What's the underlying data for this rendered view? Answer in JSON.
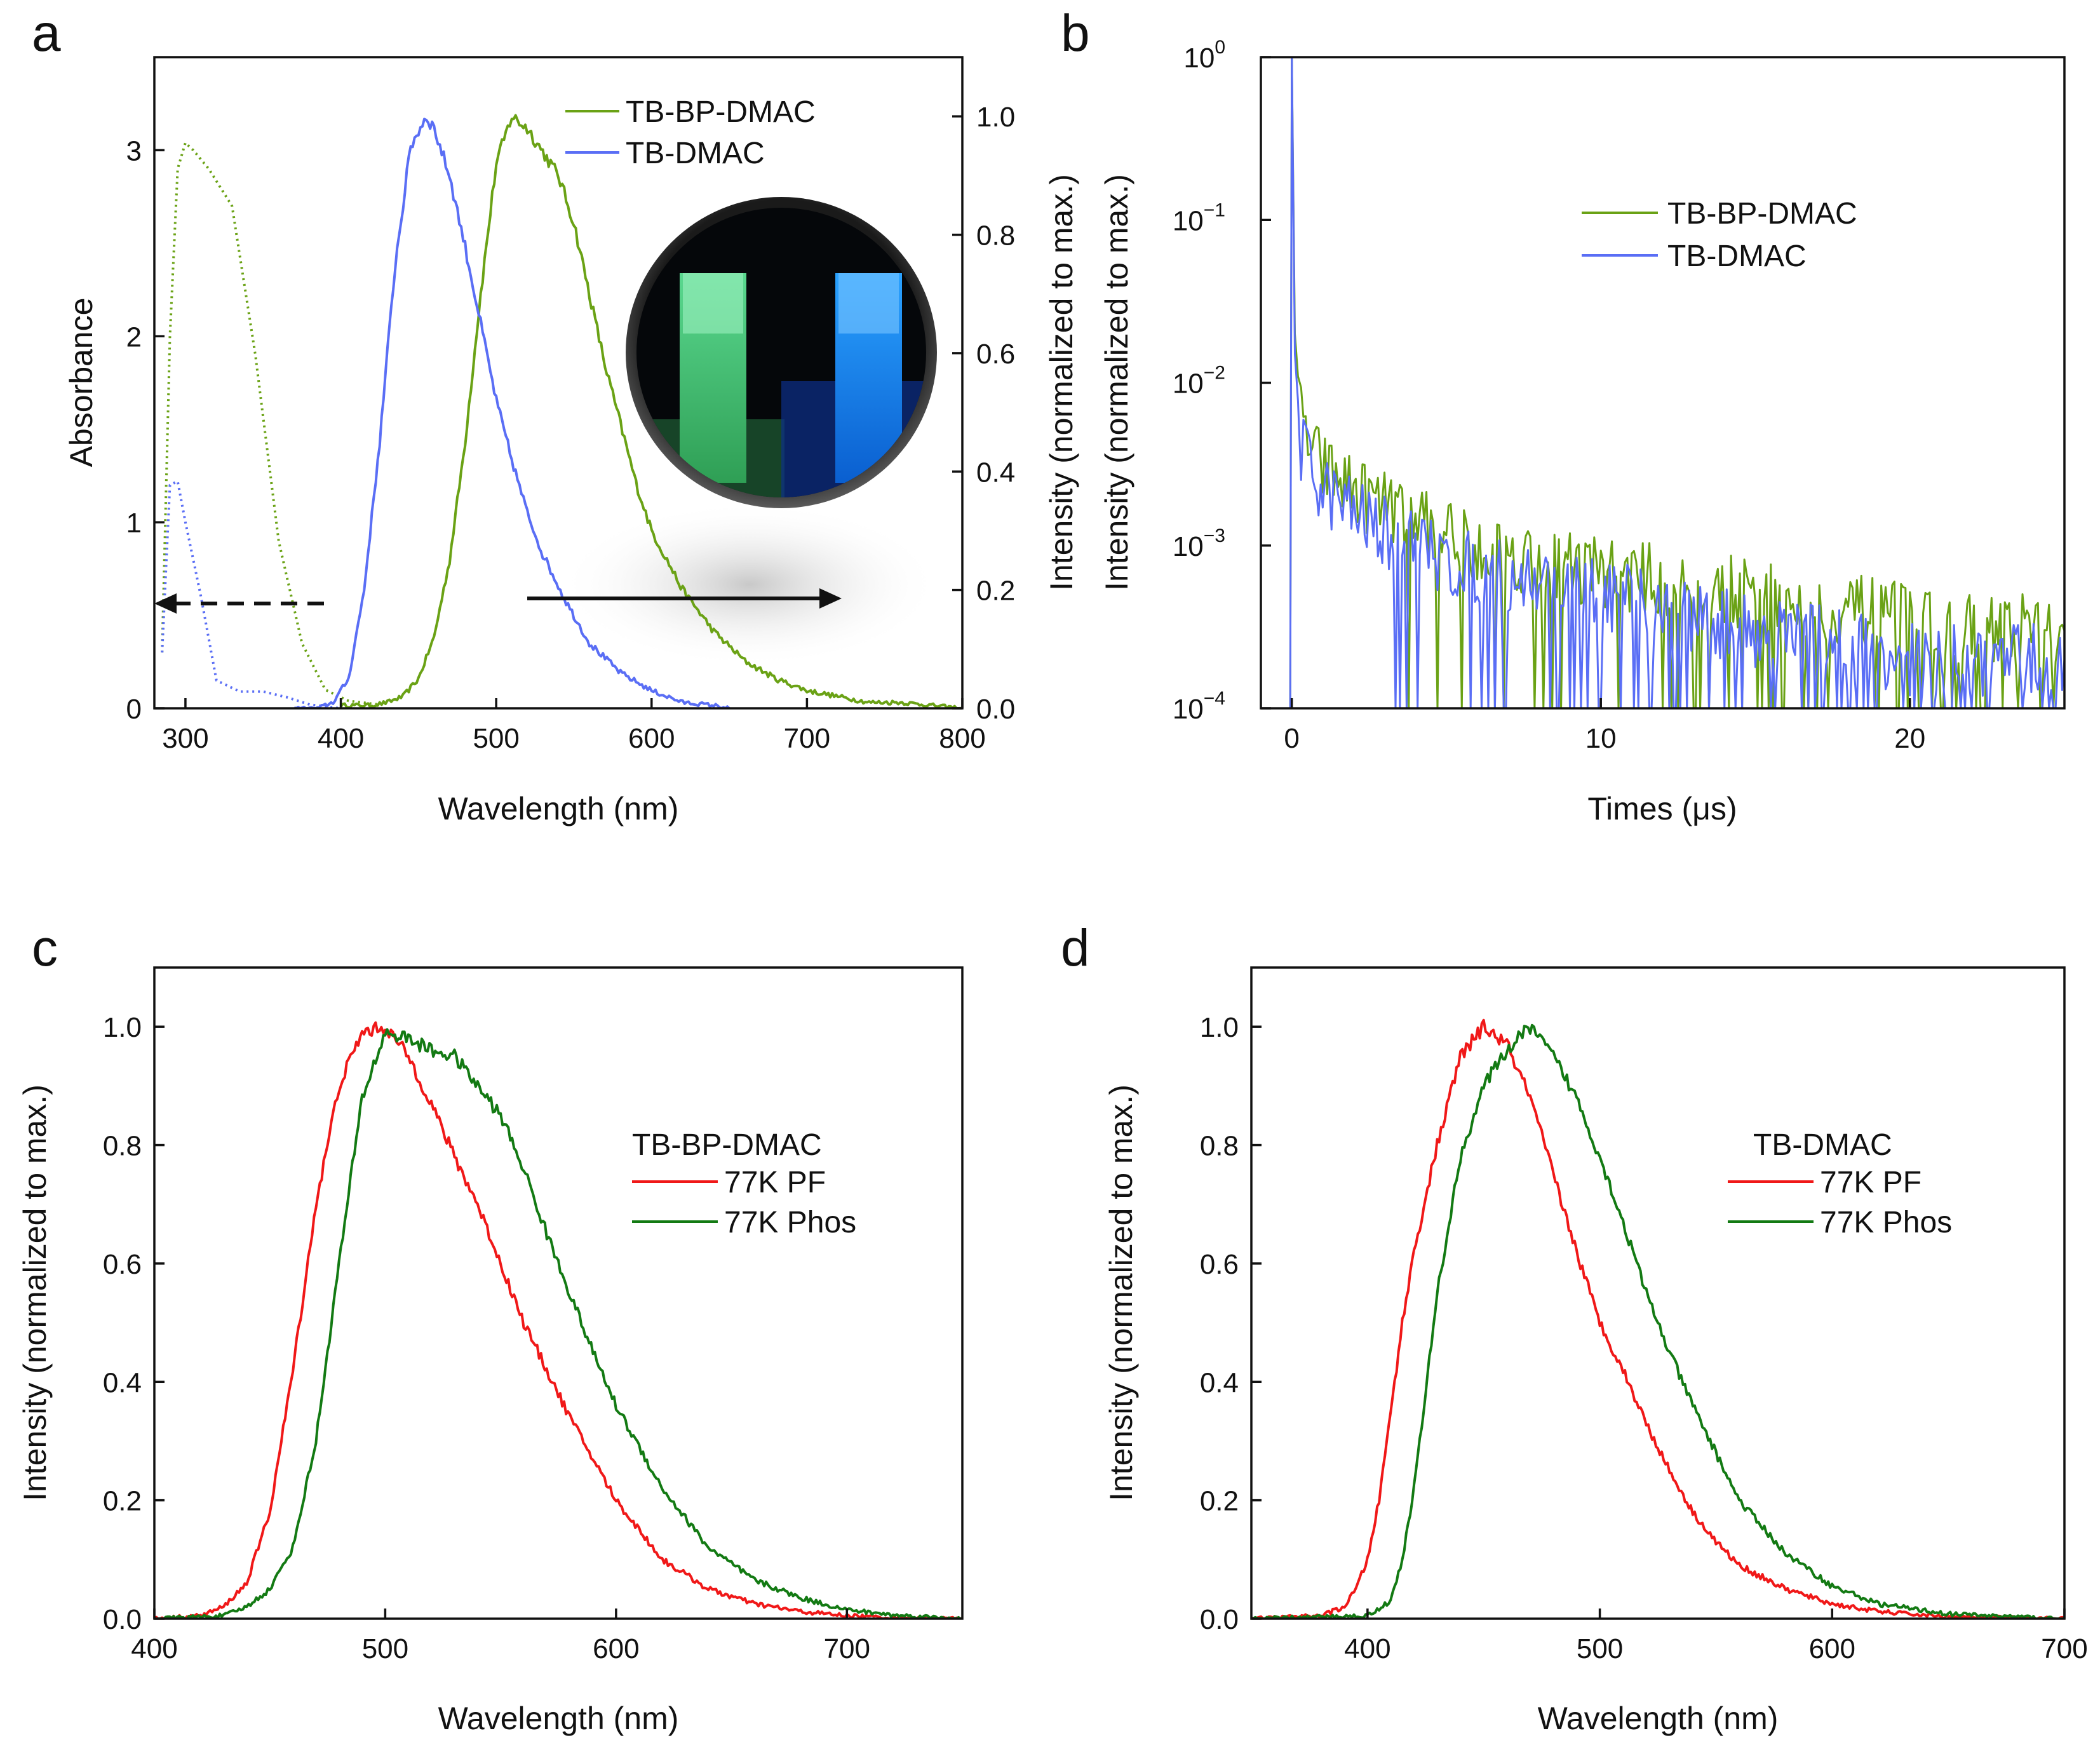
{
  "colors": {
    "green_light": "#6aa215",
    "blue": "#5a6ef5",
    "red": "#f01818",
    "green_dark": "#137a13",
    "axis": "#111111"
  },
  "chart_data": [
    {
      "panel": "a",
      "type": "line",
      "xlabel": "Wavelength (nm)",
      "ylabel": "Absorbance",
      "ylabel_right": "Intensity (normalized to max.)",
      "xlim": [
        280,
        800
      ],
      "ylim": [
        0,
        3.5
      ],
      "ylim_right": [
        0,
        1.1
      ],
      "xticks": [
        "300",
        "400",
        "500",
        "600",
        "700",
        "800"
      ],
      "yticks": [
        "0",
        "1",
        "2",
        "3"
      ],
      "yticks_right": [
        "0.0",
        "0.2",
        "0.4",
        "0.6",
        "0.8",
        "1.0"
      ],
      "legend": [
        "TB-BP-DMAC",
        "TB-DMAC"
      ],
      "inset": "photo of two cuvettes glowing green and blue under UV light",
      "series": [
        {
          "name": "TB-BP-DMAC absorption",
          "axis": "left",
          "style": "dotted",
          "color": "#6aa215",
          "x": [
            285,
            290,
            295,
            300,
            305,
            315,
            330,
            345,
            360,
            375,
            390,
            405,
            425
          ],
          "y": [
            0.3,
            2.0,
            2.9,
            3.04,
            3.0,
            2.9,
            2.7,
            1.9,
            0.9,
            0.35,
            0.1,
            0.04,
            0.02
          ]
        },
        {
          "name": "TB-DMAC absorption",
          "axis": "left",
          "style": "dotted",
          "color": "#5a6ef5",
          "x": [
            285,
            290,
            295,
            300,
            310,
            320,
            335,
            350,
            365,
            380,
            390,
            400
          ],
          "y": [
            0.3,
            1.2,
            1.22,
            1.0,
            0.6,
            0.15,
            0.09,
            0.09,
            0.06,
            0.02,
            0.01,
            0.0
          ]
        },
        {
          "name": "TB-BP-DMAC emission",
          "axis": "right",
          "style": "solid",
          "color": "#6aa215",
          "x": [
            400,
            420,
            430,
            440,
            450,
            460,
            470,
            480,
            490,
            500,
            510,
            520,
            530,
            540,
            550,
            560,
            570,
            580,
            590,
            600,
            620,
            640,
            660,
            680,
            700,
            720,
            740,
            760,
            780,
            800
          ],
          "y": [
            0.005,
            0.005,
            0.01,
            0.02,
            0.05,
            0.12,
            0.25,
            0.45,
            0.7,
            0.92,
            1.0,
            0.98,
            0.94,
            0.9,
            0.82,
            0.7,
            0.58,
            0.48,
            0.38,
            0.3,
            0.2,
            0.13,
            0.08,
            0.05,
            0.03,
            0.02,
            0.01,
            0.01,
            0.005,
            0.0
          ]
        },
        {
          "name": "TB-DMAC emission",
          "axis": "right",
          "style": "solid",
          "color": "#5a6ef5",
          "x": [
            370,
            385,
            395,
            405,
            415,
            425,
            435,
            445,
            455,
            460,
            470,
            480,
            490,
            500,
            510,
            520,
            530,
            545,
            560,
            580,
            600,
            620,
            640,
            650
          ],
          "y": [
            0.0,
            0.0,
            0.01,
            0.05,
            0.2,
            0.45,
            0.75,
            0.95,
            1.0,
            0.98,
            0.9,
            0.78,
            0.65,
            0.52,
            0.42,
            0.33,
            0.26,
            0.18,
            0.11,
            0.06,
            0.03,
            0.01,
            0.005,
            0.0
          ]
        }
      ]
    },
    {
      "panel": "b",
      "type": "line",
      "xlabel": "Times (μs)",
      "ylabel": "Intensity (normalized to max.)",
      "xlim": [
        -1,
        25
      ],
      "yscale": "log",
      "ylim": [
        0.0001,
        1
      ],
      "xticks": [
        "0",
        "10",
        "20"
      ],
      "yticks": [
        {
          "base": "10",
          "exp": "0"
        },
        {
          "base": "10",
          "exp": "−1"
        },
        {
          "base": "10",
          "exp": "−2"
        },
        {
          "base": "10",
          "exp": "−3"
        },
        {
          "base": "10",
          "exp": "−4"
        }
      ],
      "legend": [
        "TB-BP-DMAC",
        "TB-DMAC"
      ],
      "series": [
        {
          "name": "TB-BP-DMAC",
          "color": "#6aa215",
          "x": [
            -0.5,
            -0.05,
            0.0,
            0.1,
            0.3,
            0.6,
            1,
            2,
            3,
            4,
            5,
            6,
            8,
            10,
            12,
            15,
            18,
            20,
            22,
            25
          ],
          "y": [
            0.0001,
            0.0001,
            1.0,
            0.02,
            0.006,
            0.004,
            0.003,
            0.0022,
            0.0017,
            0.0014,
            0.0012,
            0.001,
            0.0008,
            0.0007,
            0.0006,
            0.0005,
            0.0004,
            0.00035,
            0.0003,
            0.0003
          ]
        },
        {
          "name": "TB-DMAC",
          "color": "#5a6ef5",
          "x": [
            -0.5,
            -0.05,
            0.0,
            0.1,
            0.3,
            0.6,
            1,
            2,
            3,
            4,
            5,
            6,
            8,
            10,
            12,
            15,
            18,
            20,
            22,
            25
          ],
          "y": [
            0.0001,
            0.0001,
            1.0,
            0.015,
            0.004,
            0.003,
            0.0022,
            0.0016,
            0.0012,
            0.001,
            0.0008,
            0.0007,
            0.0006,
            0.0005,
            0.0004,
            0.0003,
            0.00025,
            0.0002,
            0.0002,
            0.0002
          ]
        }
      ]
    },
    {
      "panel": "c",
      "type": "line",
      "xlabel": "Wavelength (nm)",
      "ylabel": "Intensity (normalized to max.)",
      "xlim": [
        400,
        750
      ],
      "ylim": [
        0,
        1.1
      ],
      "xticks": [
        "400",
        "500",
        "600",
        "700"
      ],
      "yticks": [
        "0.0",
        "0.2",
        "0.4",
        "0.6",
        "0.8",
        "1.0"
      ],
      "legend_title": "TB-BP-DMAC",
      "legend": [
        "77K PF",
        "77K Phos"
      ],
      "series": [
        {
          "name": "77K PF",
          "color": "#f01818",
          "x": [
            400,
            420,
            430,
            440,
            450,
            460,
            470,
            480,
            490,
            500,
            510,
            520,
            530,
            540,
            550,
            560,
            570,
            580,
            590,
            600,
            620,
            640,
            660,
            680,
            700,
            720,
            750
          ],
          "y": [
            0.0,
            0.005,
            0.02,
            0.06,
            0.18,
            0.42,
            0.7,
            0.9,
            0.99,
            1.0,
            0.95,
            0.87,
            0.78,
            0.7,
            0.6,
            0.5,
            0.42,
            0.34,
            0.27,
            0.2,
            0.1,
            0.05,
            0.025,
            0.012,
            0.005,
            0.002,
            0.0
          ]
        },
        {
          "name": "77K Phos",
          "color": "#137a13",
          "x": [
            400,
            430,
            440,
            450,
            460,
            470,
            480,
            490,
            500,
            510,
            520,
            530,
            540,
            550,
            560,
            570,
            580,
            590,
            600,
            620,
            640,
            660,
            680,
            700,
            720,
            750
          ],
          "y": [
            0.0,
            0.005,
            0.02,
            0.05,
            0.12,
            0.3,
            0.6,
            0.88,
            0.99,
            0.98,
            0.96,
            0.95,
            0.9,
            0.85,
            0.76,
            0.65,
            0.55,
            0.45,
            0.36,
            0.22,
            0.12,
            0.065,
            0.035,
            0.015,
            0.006,
            0.0
          ]
        }
      ]
    },
    {
      "panel": "d",
      "type": "line",
      "xlabel": "Wavelength (nm)",
      "ylabel": "Intensity (normalized to max.)",
      "xlim": [
        350,
        700
      ],
      "ylim": [
        0,
        1.1
      ],
      "xticks": [
        "400",
        "500",
        "600",
        "700"
      ],
      "yticks": [
        "0.0",
        "0.2",
        "0.4",
        "0.6",
        "0.8",
        "1.0"
      ],
      "legend_title": "TB-DMAC",
      "legend": [
        "77K PF",
        "77K Phos"
      ],
      "series": [
        {
          "name": "77K PF",
          "color": "#f01818",
          "x": [
            350,
            380,
            390,
            395,
            400,
            405,
            410,
            415,
            420,
            430,
            440,
            450,
            460,
            470,
            480,
            490,
            500,
            510,
            520,
            530,
            540,
            550,
            560,
            580,
            600,
            620,
            650,
            700
          ],
          "y": [
            0.0,
            0.005,
            0.02,
            0.05,
            0.1,
            0.2,
            0.35,
            0.5,
            0.62,
            0.8,
            0.95,
            1.0,
            0.97,
            0.88,
            0.75,
            0.62,
            0.5,
            0.42,
            0.33,
            0.25,
            0.18,
            0.13,
            0.09,
            0.05,
            0.025,
            0.012,
            0.003,
            0.0
          ]
        },
        {
          "name": "77K Phos",
          "color": "#137a13",
          "x": [
            350,
            400,
            410,
            415,
            420,
            425,
            430,
            440,
            450,
            460,
            470,
            480,
            490,
            500,
            510,
            520,
            530,
            540,
            550,
            560,
            580,
            600,
            620,
            650,
            700
          ],
          "y": [
            0.0,
            0.005,
            0.03,
            0.1,
            0.22,
            0.38,
            0.55,
            0.78,
            0.9,
            0.96,
            1.0,
            0.95,
            0.88,
            0.78,
            0.67,
            0.55,
            0.45,
            0.36,
            0.28,
            0.2,
            0.11,
            0.055,
            0.025,
            0.008,
            0.0
          ]
        }
      ]
    }
  ]
}
